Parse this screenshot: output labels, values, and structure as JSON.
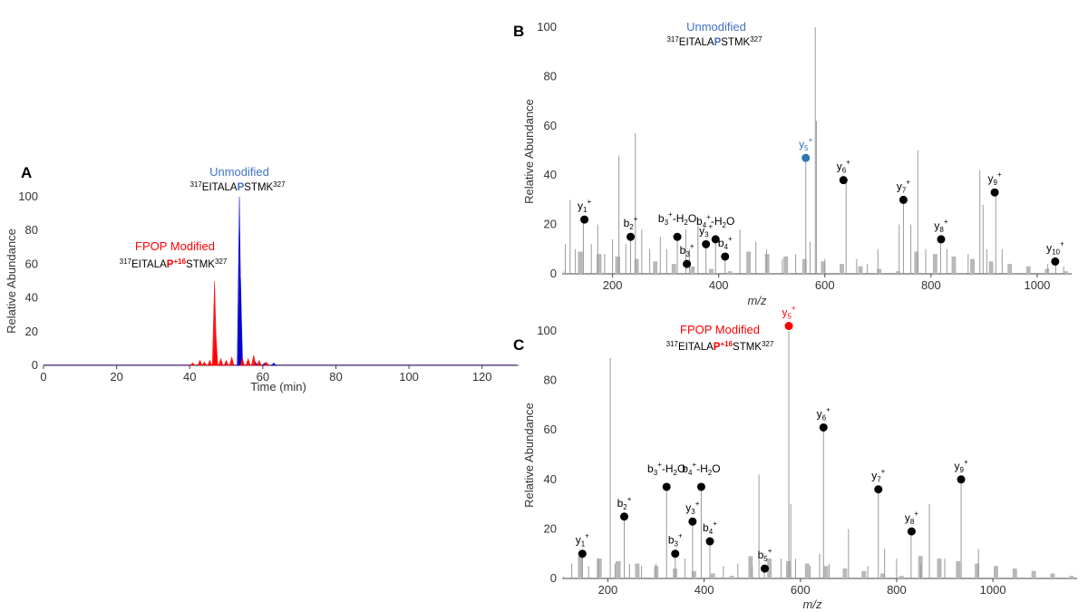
{
  "chart_data": [
    {
      "panel": "A",
      "type": "line",
      "title_unmod": "Unmodified",
      "title_mod": "FPOP Modified",
      "peptide_unmod": {
        "pre": "317",
        "seq1": "EITALA",
        "res": "P",
        "mod": "",
        "seq2": "STMK",
        "post": "327"
      },
      "peptide_mod": {
        "pre": "317",
        "seq1": "EITALA",
        "res": "P",
        "mod": "+16",
        "seq2": "STMK",
        "post": "327"
      },
      "xlabel": "Time (min)",
      "ylabel": "Relative Abundance",
      "xlim": [
        0,
        130
      ],
      "ylim": [
        0,
        100
      ],
      "xticks": [
        0,
        20,
        40,
        60,
        80,
        100,
        120
      ],
      "yticks": [
        0,
        20,
        40,
        60,
        80,
        100
      ],
      "colors": {
        "unmodified": "#0000cc",
        "modified": "#ff0000",
        "title_unmod": "#4472c4",
        "title_mod": "#ff0000"
      },
      "series": [
        {
          "name": "Unmodified",
          "color": "#0000cc",
          "peaks": [
            [
              53.6,
              100
            ],
            [
              53.9,
              52
            ],
            [
              58.0,
              2
            ],
            [
              60.5,
              1.5
            ],
            [
              63.0,
              1.5
            ]
          ]
        },
        {
          "name": "FPOP Modified",
          "color": "#ff0000",
          "peaks": [
            [
              40.8,
              1.5
            ],
            [
              42.8,
              3
            ],
            [
              44.0,
              2
            ],
            [
              45.5,
              3
            ],
            [
              46.8,
              50
            ],
            [
              47.1,
              20
            ],
            [
              48.5,
              4
            ],
            [
              50.0,
              3
            ],
            [
              51.5,
              5
            ],
            [
              54.4,
              4
            ],
            [
              56.0,
              4
            ],
            [
              57.5,
              6
            ],
            [
              59.0,
              3
            ],
            [
              61.0,
              2
            ]
          ]
        }
      ]
    },
    {
      "panel": "B",
      "type": "bar",
      "title": "Unmodified",
      "title_color": "#4472c4",
      "peptide": {
        "pre": "317",
        "seq1": "EITALA",
        "res": "P",
        "mod": "",
        "seq2": "STMK",
        "post": "327",
        "res_color": "#4472c4"
      },
      "xlabel": "m/z",
      "ylabel": "Relative Abundance",
      "xlim": [
        105,
        1065
      ],
      "ylim": [
        0,
        100
      ],
      "xticks": [
        200,
        400,
        600,
        800,
        1000
      ],
      "yticks": [
        0,
        20,
        40,
        60,
        80,
        100
      ],
      "peaks": [
        [
          111,
          12
        ],
        [
          120,
          30
        ],
        [
          130,
          10
        ],
        [
          145,
          22
        ],
        [
          160,
          12
        ],
        [
          172,
          20
        ],
        [
          185,
          8
        ],
        [
          200,
          14
        ],
        [
          212,
          48
        ],
        [
          225,
          12
        ],
        [
          234,
          14
        ],
        [
          243,
          57
        ],
        [
          255,
          18
        ],
        [
          270,
          10
        ],
        [
          290,
          15
        ],
        [
          302,
          10
        ],
        [
          322,
          14
        ],
        [
          338,
          18
        ],
        [
          345,
          10
        ],
        [
          361,
          22
        ],
        [
          376,
          12
        ],
        [
          394,
          14
        ],
        [
          412,
          7
        ],
        [
          440,
          18
        ],
        [
          470,
          13
        ],
        [
          490,
          10
        ],
        [
          520,
          6
        ],
        [
          545,
          8
        ],
        [
          564,
          46
        ],
        [
          572,
          13
        ],
        [
          582,
          100
        ],
        [
          584,
          62
        ],
        [
          600,
          6
        ],
        [
          640,
          38
        ],
        [
          660,
          6
        ],
        [
          680,
          4
        ],
        [
          700,
          10
        ],
        [
          740,
          20
        ],
        [
          748,
          30
        ],
        [
          762,
          20
        ],
        [
          775,
          50
        ],
        [
          790,
          10
        ],
        [
          818,
          14
        ],
        [
          830,
          10
        ],
        [
          870,
          8
        ],
        [
          892,
          42
        ],
        [
          898,
          28
        ],
        [
          905,
          10
        ],
        [
          922,
          33
        ],
        [
          934,
          10
        ],
        [
          1020,
          4
        ],
        [
          1035,
          5
        ],
        [
          1050,
          3
        ]
      ],
      "ions": [
        {
          "label": "y",
          "sub": "1",
          "sup": "+",
          "suffix": "",
          "mz": 147,
          "y": 22,
          "color": "#000000"
        },
        {
          "label": "b",
          "sub": "2",
          "sup": "+",
          "suffix": "",
          "mz": 234,
          "y": 15,
          "color": "#000000"
        },
        {
          "label": "b",
          "sub": "3",
          "sup": "+",
          "suffix": "-H2O",
          "mz": 322,
          "y": 15,
          "color": "#000000"
        },
        {
          "label": "b",
          "sub": "3",
          "sup": "+",
          "suffix": "",
          "mz": 340,
          "y": 4,
          "color": "#000000"
        },
        {
          "label": "y",
          "sub": "3",
          "sup": "+",
          "suffix": "",
          "mz": 376,
          "y": 12,
          "color": "#000000"
        },
        {
          "label": "b",
          "sub": "4",
          "sup": "+",
          "suffix": "-H2O",
          "mz": 394,
          "y": 14,
          "color": "#000000"
        },
        {
          "label": "b",
          "sub": "4",
          "sup": "+",
          "suffix": "",
          "mz": 412,
          "y": 7,
          "color": "#000000"
        },
        {
          "label": "y",
          "sub": "5",
          "sup": "+",
          "suffix": "",
          "mz": 564,
          "y": 47,
          "color": "#2e75b6"
        },
        {
          "label": "y",
          "sub": "6",
          "sup": "+",
          "suffix": "",
          "mz": 635,
          "y": 38,
          "color": "#000000"
        },
        {
          "label": "y",
          "sub": "7",
          "sup": "+",
          "suffix": "",
          "mz": 748,
          "y": 30,
          "color": "#000000"
        },
        {
          "label": "y",
          "sub": "8",
          "sup": "+",
          "suffix": "",
          "mz": 819,
          "y": 14,
          "color": "#000000"
        },
        {
          "label": "y",
          "sub": "9",
          "sup": "+",
          "suffix": "",
          "mz": 920,
          "y": 33,
          "color": "#000000"
        },
        {
          "label": "y",
          "sub": "10",
          "sup": "+",
          "suffix": "",
          "mz": 1034,
          "y": 5,
          "color": "#000000"
        }
      ]
    },
    {
      "panel": "C",
      "type": "bar",
      "title": "FPOP Modified",
      "title_color": "#ff0000",
      "peptide": {
        "pre": "317",
        "seq1": "EITALA",
        "res": "P",
        "mod": "+16",
        "seq2": "STMK",
        "post": "327",
        "res_color": "#ff0000"
      },
      "xlabel": "m/z",
      "ylabel": "Relative Abundance",
      "xlim": [
        105,
        1175
      ],
      "ylim": [
        0,
        100
      ],
      "xticks": [
        200,
        400,
        600,
        800,
        1000
      ],
      "yticks": [
        0,
        20,
        40,
        60,
        80,
        100
      ],
      "peaks": [
        [
          125,
          6
        ],
        [
          147,
          10
        ],
        [
          160,
          5
        ],
        [
          180,
          8
        ],
        [
          205,
          89
        ],
        [
          215,
          6
        ],
        [
          234,
          25
        ],
        [
          245,
          6
        ],
        [
          270,
          5
        ],
        [
          300,
          6
        ],
        [
          322,
          37
        ],
        [
          340,
          10
        ],
        [
          360,
          8
        ],
        [
          376,
          23
        ],
        [
          394,
          37
        ],
        [
          412,
          15
        ],
        [
          440,
          5
        ],
        [
          470,
          6
        ],
        [
          500,
          5
        ],
        [
          514,
          42
        ],
        [
          525,
          4
        ],
        [
          560,
          8
        ],
        [
          576,
          100
        ],
        [
          580,
          30
        ],
        [
          590,
          8
        ],
        [
          620,
          5
        ],
        [
          640,
          10
        ],
        [
          648,
          61
        ],
        [
          660,
          6
        ],
        [
          700,
          20
        ],
        [
          740,
          5
        ],
        [
          762,
          36
        ],
        [
          775,
          12
        ],
        [
          800,
          8
        ],
        [
          830,
          20
        ],
        [
          850,
          6
        ],
        [
          868,
          30
        ],
        [
          900,
          8
        ],
        [
          934,
          40
        ],
        [
          970,
          12
        ]
      ],
      "ions": [
        {
          "label": "y",
          "sub": "1",
          "sup": "+",
          "suffix": "",
          "mz": 147,
          "y": 10,
          "color": "#000000"
        },
        {
          "label": "b",
          "sub": "2",
          "sup": "+",
          "suffix": "",
          "mz": 234,
          "y": 25,
          "color": "#000000"
        },
        {
          "label": "b",
          "sub": "3",
          "sup": "+",
          "suffix": "-H2O",
          "mz": 322,
          "y": 37,
          "color": "#000000"
        },
        {
          "label": "b",
          "sub": "3",
          "sup": "+",
          "suffix": "",
          "mz": 340,
          "y": 10,
          "color": "#000000"
        },
        {
          "label": "y",
          "sub": "3",
          "sup": "+",
          "suffix": "",
          "mz": 376,
          "y": 23,
          "color": "#000000"
        },
        {
          "label": "b",
          "sub": "4",
          "sup": "+",
          "suffix": "-H2O",
          "mz": 394,
          "y": 37,
          "color": "#000000"
        },
        {
          "label": "b",
          "sub": "4",
          "sup": "+",
          "suffix": "",
          "mz": 412,
          "y": 15,
          "color": "#000000"
        },
        {
          "label": "b",
          "sub": "5",
          "sup": "+",
          "suffix": "",
          "mz": 526,
          "y": 4,
          "color": "#000000"
        },
        {
          "label": "y",
          "sub": "5",
          "sup": "+",
          "suffix": "",
          "mz": 576,
          "y": 102,
          "color": "#ff0000"
        },
        {
          "label": "y",
          "sub": "6",
          "sup": "+",
          "suffix": "",
          "mz": 648,
          "y": 61,
          "color": "#000000"
        },
        {
          "label": "y",
          "sub": "7",
          "sup": "+",
          "suffix": "",
          "mz": 762,
          "y": 36,
          "color": "#000000"
        },
        {
          "label": "y",
          "sub": "8",
          "sup": "+",
          "suffix": "",
          "mz": 831,
          "y": 19,
          "color": "#000000"
        },
        {
          "label": "y",
          "sub": "9",
          "sup": "+",
          "suffix": "",
          "mz": 934,
          "y": 40,
          "color": "#000000"
        }
      ]
    }
  ]
}
